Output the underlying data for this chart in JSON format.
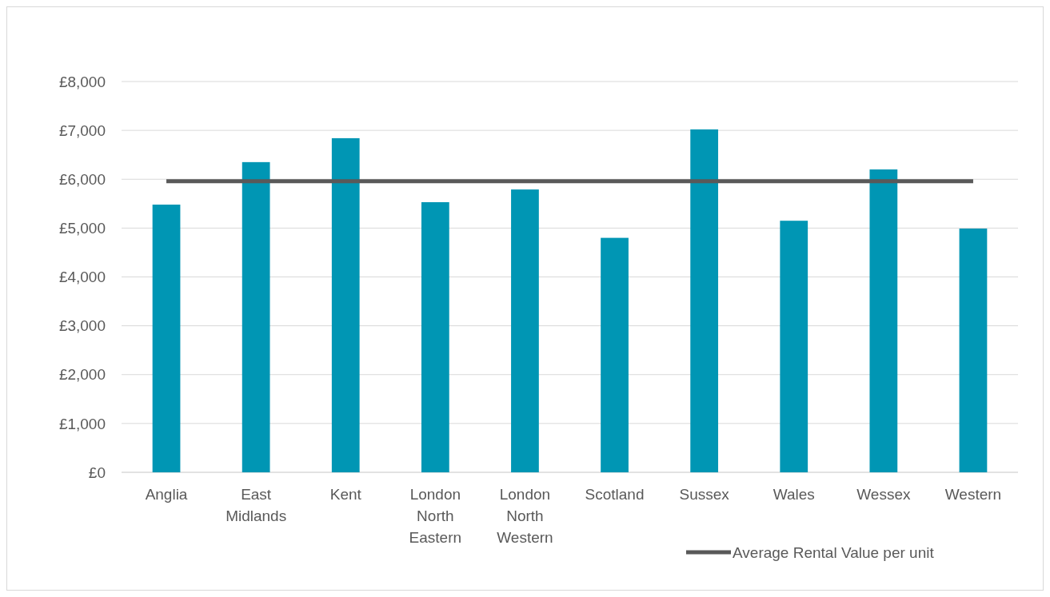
{
  "chart_data": {
    "type": "bar",
    "categories": [
      "Anglia",
      "East Midlands",
      "Kent",
      "London North Eastern",
      "London North Western",
      "Scotland",
      "Sussex",
      "Wales",
      "Wessex",
      "Western"
    ],
    "series": [
      {
        "color": "#0096b4",
        "values": [
          5480,
          6350,
          6840,
          5530,
          5790,
          4800,
          7020,
          5150,
          6200,
          4990
        ]
      },
      {
        "type": "line",
        "name": "Average Rental Value per unit",
        "color": "#595959",
        "values": [
          5960,
          5960,
          5960,
          5960,
          5960,
          5960,
          5960,
          5960,
          5960,
          5960
        ]
      }
    ],
    "ylim": [
      0,
      8000
    ],
    "yticks": [
      {
        "value": 0,
        "label": "£0"
      },
      {
        "value": 1000,
        "label": "£1,000"
      },
      {
        "value": 2000,
        "label": "£2,000"
      },
      {
        "value": 3000,
        "label": "£3,000"
      },
      {
        "value": 4000,
        "label": "£4,000"
      },
      {
        "value": 5000,
        "label": "£5,000"
      },
      {
        "value": 6000,
        "label": "£6,000"
      },
      {
        "value": 7000,
        "label": "£7,000"
      },
      {
        "value": 8000,
        "label": "£8,000"
      }
    ],
    "grid": "y",
    "legend": "bottom right"
  }
}
